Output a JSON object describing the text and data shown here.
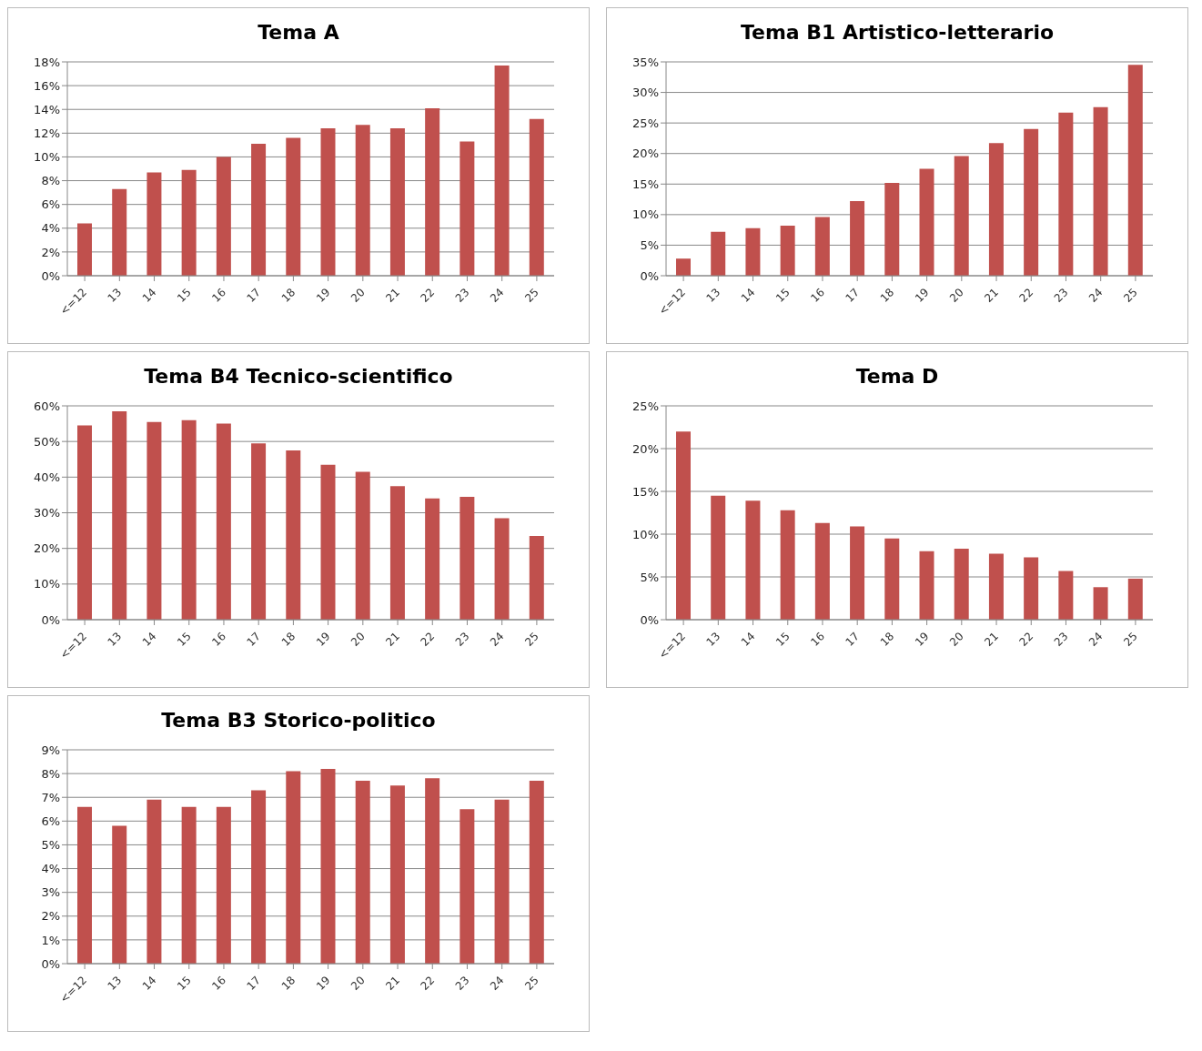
{
  "chart_data": [
    {
      "type": "bar",
      "title": "Tema A",
      "categories": [
        "<=12",
        "13",
        "14",
        "15",
        "16",
        "17",
        "18",
        "19",
        "20",
        "21",
        "22",
        "23",
        "24",
        "25"
      ],
      "color": "#c0504d",
      "grid": "y",
      "ylim": [
        0,
        18
      ],
      "yticks": [
        {
          "value": 0,
          "label": "0%"
        },
        {
          "value": 2,
          "label": "2%"
        },
        {
          "value": 4,
          "label": "4%"
        },
        {
          "value": 6,
          "label": "6%"
        },
        {
          "value": 8,
          "label": "8%"
        },
        {
          "value": 10,
          "label": "10%"
        },
        {
          "value": 12,
          "label": "12%"
        },
        {
          "value": 14,
          "label": "14%"
        },
        {
          "value": 16,
          "label": "16%"
        },
        {
          "value": 18,
          "label": "18%"
        }
      ],
      "values": [
        4.4,
        7.3,
        8.7,
        8.9,
        10.0,
        11.1,
        11.6,
        12.4,
        12.7,
        12.4,
        14.1,
        11.3,
        17.7,
        13.2
      ]
    },
    {
      "type": "bar",
      "title": "Tema B1 Artistico-letterario",
      "categories": [
        "<=12",
        "13",
        "14",
        "15",
        "16",
        "17",
        "18",
        "19",
        "20",
        "21",
        "22",
        "23",
        "24",
        "25"
      ],
      "color": "#c0504d",
      "grid": "y",
      "ylim": [
        0,
        35
      ],
      "yticks": [
        {
          "value": 0,
          "label": "0%"
        },
        {
          "value": 5,
          "label": "5%"
        },
        {
          "value": 10,
          "label": "10%"
        },
        {
          "value": 15,
          "label": "15%"
        },
        {
          "value": 20,
          "label": "20%"
        },
        {
          "value": 25,
          "label": "25%"
        },
        {
          "value": 30,
          "label": "30%"
        },
        {
          "value": 35,
          "label": "35%"
        }
      ],
      "values": [
        2.8,
        7.2,
        7.8,
        8.2,
        9.6,
        12.2,
        15.2,
        17.5,
        19.6,
        21.7,
        24.0,
        26.7,
        27.6,
        34.5
      ]
    },
    {
      "type": "bar",
      "title": "Tema B4 Tecnico-scientifico",
      "categories": [
        "<=12",
        "13",
        "14",
        "15",
        "16",
        "17",
        "18",
        "19",
        "20",
        "21",
        "22",
        "23",
        "24",
        "25"
      ],
      "color": "#c0504d",
      "grid": "y",
      "ylim": [
        0,
        60
      ],
      "yticks": [
        {
          "value": 0,
          "label": "0%"
        },
        {
          "value": 10,
          "label": "10%"
        },
        {
          "value": 20,
          "label": "20%"
        },
        {
          "value": 30,
          "label": "30%"
        },
        {
          "value": 40,
          "label": "40%"
        },
        {
          "value": 50,
          "label": "50%"
        },
        {
          "value": 60,
          "label": "60%"
        }
      ],
      "values": [
        54.5,
        58.5,
        55.5,
        56,
        55,
        49.5,
        47.5,
        43.5,
        41.5,
        37.5,
        34,
        34.5,
        28.5,
        23.5
      ]
    },
    {
      "type": "bar",
      "title": "Tema D",
      "categories": [
        "<=12",
        "13",
        "14",
        "15",
        "16",
        "17",
        "18",
        "19",
        "20",
        "21",
        "22",
        "23",
        "24",
        "25"
      ],
      "color": "#c0504d",
      "grid": "y",
      "ylim": [
        0,
        25
      ],
      "yticks": [
        {
          "value": 0,
          "label": "0%"
        },
        {
          "value": 5,
          "label": "5%"
        },
        {
          "value": 10,
          "label": "10%"
        },
        {
          "value": 15,
          "label": "15%"
        },
        {
          "value": 20,
          "label": "20%"
        },
        {
          "value": 25,
          "label": "25%"
        }
      ],
      "values": [
        22.0,
        14.5,
        13.9,
        12.8,
        11.3,
        10.9,
        9.5,
        8.0,
        8.3,
        7.7,
        7.3,
        5.7,
        3.8,
        4.8
      ]
    },
    {
      "type": "bar",
      "title": "Tema B3 Storico-politico",
      "categories": [
        "<=12",
        "13",
        "14",
        "15",
        "16",
        "17",
        "18",
        "19",
        "20",
        "21",
        "22",
        "23",
        "24",
        "25"
      ],
      "color": "#c0504d",
      "grid": "y",
      "ylim": [
        0,
        9
      ],
      "yticks": [
        {
          "value": 0,
          "label": "0%"
        },
        {
          "value": 1,
          "label": "1%"
        },
        {
          "value": 2,
          "label": "2%"
        },
        {
          "value": 3,
          "label": "3%"
        },
        {
          "value": 4,
          "label": "4%"
        },
        {
          "value": 5,
          "label": "5%"
        },
        {
          "value": 6,
          "label": "6%"
        },
        {
          "value": 7,
          "label": "7%"
        },
        {
          "value": 8,
          "label": "8%"
        },
        {
          "value": 9,
          "label": "9%"
        }
      ],
      "values": [
        6.6,
        5.8,
        6.9,
        6.6,
        6.6,
        7.3,
        8.1,
        8.2,
        7.7,
        7.5,
        7.8,
        6.5,
        6.9,
        7.7
      ]
    }
  ]
}
